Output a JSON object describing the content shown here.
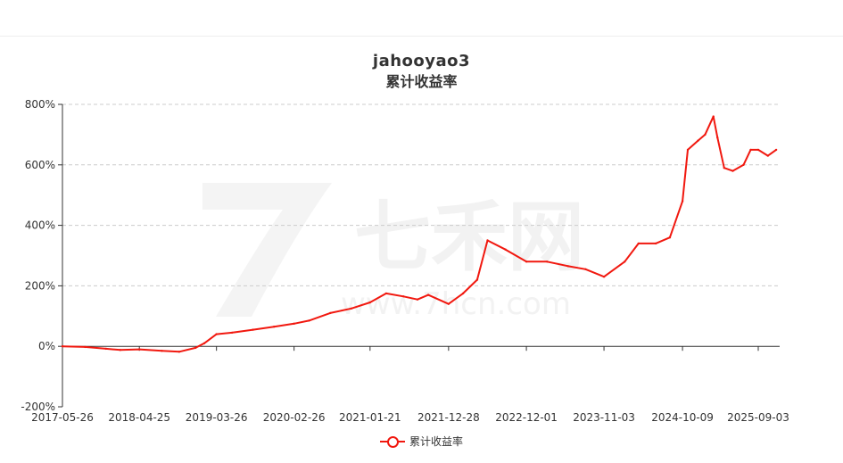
{
  "chart_data": {
    "type": "line",
    "title": "jahooyao3",
    "subtitle": "累计收益率",
    "x_ticks": [
      "2017-05-26",
      "2018-04-25",
      "2019-03-26",
      "2020-02-26",
      "2021-01-21",
      "2021-12-28",
      "2022-12-01",
      "2023-11-03",
      "2024-10-09",
      "2025-09-03"
    ],
    "y_ticks": [
      "800%",
      "600%",
      "400%",
      "200%",
      "0%",
      "-200%"
    ],
    "ylim": [
      -200,
      800
    ],
    "grid": true,
    "legend": "bottom",
    "series": [
      {
        "name": "累计收益率",
        "color": "#f1180f",
        "x": [
          "2017-05-26",
          "2017-09-01",
          "2017-12-01",
          "2018-02-01",
          "2018-04-25",
          "2018-08-01",
          "2018-10-15",
          "2018-12-25",
          "2019-02-01",
          "2019-03-26",
          "2019-06-01",
          "2019-09-01",
          "2019-12-01",
          "2020-02-26",
          "2020-05-01",
          "2020-08-01",
          "2020-11-01",
          "2021-01-21",
          "2021-04-01",
          "2021-06-15",
          "2021-08-15",
          "2021-10-01",
          "2021-12-28",
          "2022-03-01",
          "2022-05-01",
          "2022-06-15",
          "2022-09-01",
          "2022-12-01",
          "2023-03-01",
          "2023-06-01",
          "2023-08-15",
          "2023-11-03",
          "2024-02-01",
          "2024-04-01",
          "2024-06-15",
          "2024-08-15",
          "2024-10-09",
          "2024-11-01",
          "2024-12-15",
          "2025-01-15",
          "2025-02-20",
          "2025-03-10",
          "2025-04-08",
          "2025-05-15",
          "2025-07-01",
          "2025-08-01",
          "2025-09-03",
          "2025-10-15",
          "2025-11-20"
        ],
        "values": [
          0,
          -2,
          -8,
          -12,
          -10,
          -15,
          -18,
          -5,
          10,
          40,
          45,
          55,
          65,
          75,
          85,
          110,
          125,
          145,
          175,
          165,
          155,
          170,
          140,
          175,
          220,
          350,
          320,
          280,
          280,
          265,
          255,
          230,
          280,
          340,
          340,
          360,
          480,
          650,
          680,
          700,
          760,
          690,
          590,
          580,
          600,
          650,
          650,
          630,
          650
        ]
      }
    ]
  },
  "watermark": {
    "text": "七禾网",
    "url": "www.7hcn.com"
  }
}
